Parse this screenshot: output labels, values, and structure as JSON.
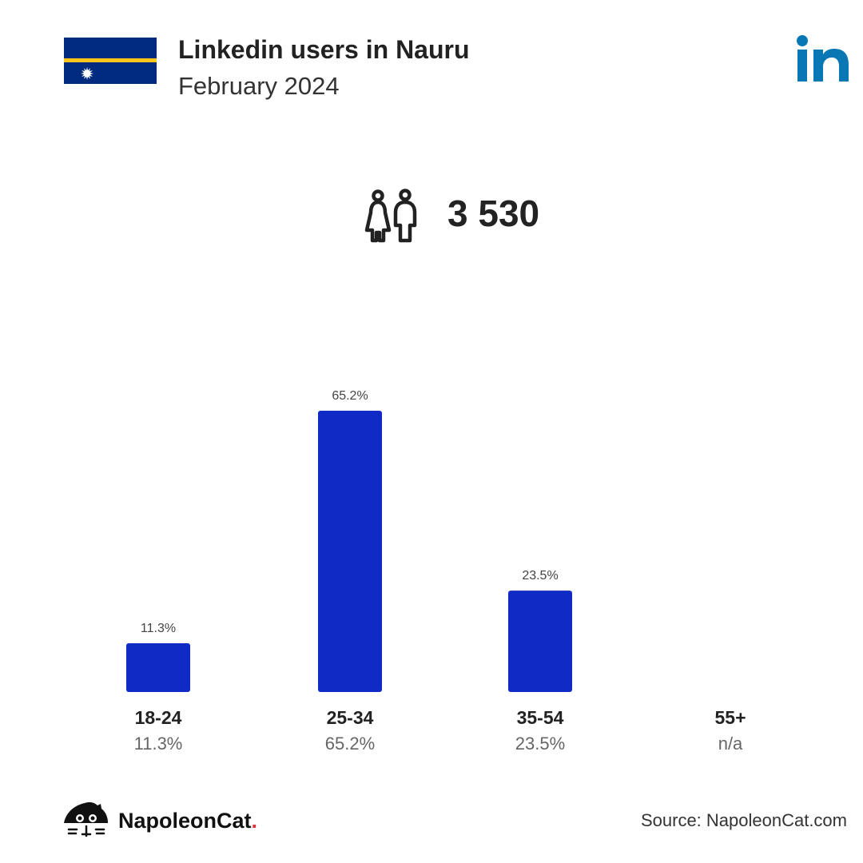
{
  "header": {
    "title": "Linkedin users in Nauru",
    "subtitle": "February 2024",
    "flag_icon": "nauru-flag-icon",
    "platform_icon": "linkedin-logo-icon"
  },
  "summary": {
    "icon": "users-icon",
    "total": "3 530"
  },
  "chart_data": {
    "type": "bar",
    "categories": [
      "18-24",
      "25-34",
      "35-54",
      "55+"
    ],
    "values": [
      11.3,
      65.2,
      23.5,
      null
    ],
    "value_labels": [
      "11.3%",
      "65.2%",
      "23.5%",
      "n/a"
    ],
    "ylim": [
      0,
      65.2
    ],
    "grid": false,
    "bar_color": "#0f2ac5"
  },
  "footer": {
    "brand_name": "NapoleonCat",
    "brand_dot": ".",
    "brand_icon": "napoleoncat-logo-icon",
    "source": "Source: NapoleonCat.com"
  },
  "colors": {
    "flag_blue": "#002b7f",
    "flag_yellow": "#ffc61e",
    "linkedin_blue": "#0a77b5"
  }
}
